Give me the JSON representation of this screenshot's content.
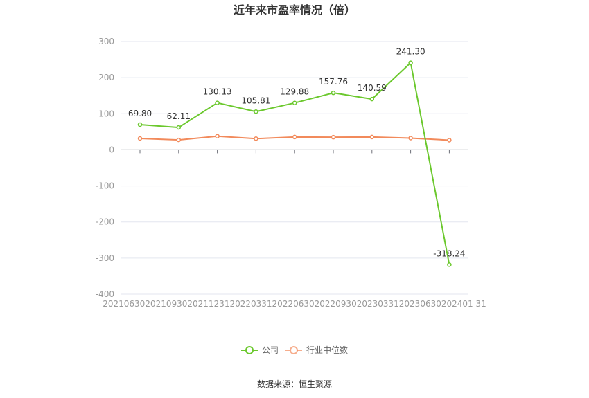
{
  "chart_data": {
    "type": "line",
    "title": "近年来市盈率情况（倍）",
    "x": [
      "20210630",
      "20210930",
      "20211231",
      "20220331",
      "20220630",
      "20220930",
      "20230331",
      "20230630",
      "20240131"
    ],
    "x_tick_text": "2021063020210930202112312022033120220630202209302023033120230630202401 31",
    "ylim": [
      -400,
      300
    ],
    "yticks": [
      300,
      200,
      100,
      0,
      -100,
      -200,
      -300,
      -400
    ],
    "grid": true,
    "legend_position": "bottom-center",
    "series": [
      {
        "name": "公司",
        "color": "#6bc82d",
        "values": [
          69.8,
          62.11,
          130.13,
          105.81,
          129.88,
          157.76,
          140.59,
          241.3,
          -318.24
        ],
        "labels": [
          "69.80",
          "62.11",
          "130.13",
          "105.81",
          "129.88",
          "157.76",
          "140.59",
          "241.30",
          "-318.24"
        ]
      },
      {
        "name": "行业中位数",
        "color": "#f28a5b",
        "values": [
          31.5,
          27.5,
          37.8,
          31.0,
          35.5,
          35.0,
          35.5,
          32.5,
          26.8
        ]
      }
    ]
  },
  "source_text": "数据来源：恒生聚源"
}
